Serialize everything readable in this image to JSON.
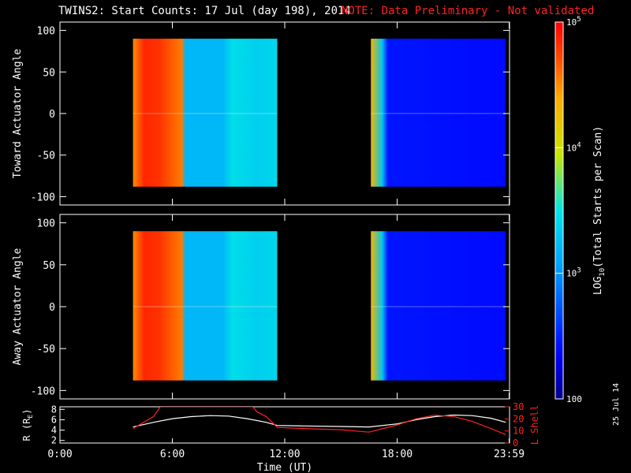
{
  "title": {
    "main": "TWINS2: Start Counts: 17 Jul (day 198), 2014",
    "note": "NOTE: Data Preliminary - Not validated",
    "note_color": "#ff2222"
  },
  "stamp": "25 Jul 14",
  "chart_data": [
    {
      "type": "heatmap",
      "panel": "top",
      "ylabel": "Toward Actuator Angle",
      "yticks": [
        100,
        50,
        0,
        -50,
        -100
      ],
      "ylim": [
        -110,
        110
      ],
      "data_y_range": [
        -88,
        90
      ],
      "xlim_hours": [
        0,
        24
      ],
      "data_segments_hours": [
        [
          3.9,
          11.6
        ],
        [
          16.6,
          23.8
        ]
      ],
      "color_profile_hours": [
        {
          "x": 3.9,
          "log": 4.5
        },
        {
          "x": 4.5,
          "log": 4.85
        },
        {
          "x": 5.3,
          "log": 4.8
        },
        {
          "x": 6.5,
          "log": 4.55
        },
        {
          "x": 6.7,
          "log": 3.2
        },
        {
          "x": 8.7,
          "log": 3.2
        },
        {
          "x": 9.2,
          "log": 3.45
        },
        {
          "x": 10.5,
          "log": 3.35
        },
        {
          "x": 11.6,
          "log": 3.4
        },
        {
          "x": 16.6,
          "log": 4.3
        },
        {
          "x": 17.2,
          "log": 3.3
        },
        {
          "x": 17.5,
          "log": 2.45
        },
        {
          "x": 23.8,
          "log": 2.4
        }
      ]
    },
    {
      "type": "heatmap",
      "panel": "bottom",
      "ylabel": "Away Actuator Angle",
      "yticks": [
        100,
        50,
        0,
        -50,
        -100
      ],
      "ylim": [
        -110,
        110
      ],
      "data_y_range": [
        -88,
        90
      ],
      "xlim_hours": [
        0,
        24
      ],
      "data_segments_hours": [
        [
          3.9,
          11.6
        ],
        [
          16.6,
          23.8
        ]
      ],
      "color_profile_hours": [
        {
          "x": 3.9,
          "log": 4.5
        },
        {
          "x": 4.5,
          "log": 4.85
        },
        {
          "x": 5.3,
          "log": 4.8
        },
        {
          "x": 6.5,
          "log": 4.55
        },
        {
          "x": 6.7,
          "log": 3.2
        },
        {
          "x": 8.7,
          "log": 3.2
        },
        {
          "x": 9.2,
          "log": 3.45
        },
        {
          "x": 10.5,
          "log": 3.35
        },
        {
          "x": 11.6,
          "log": 3.4
        },
        {
          "x": 16.6,
          "log": 4.3
        },
        {
          "x": 17.2,
          "log": 3.3
        },
        {
          "x": 17.5,
          "log": 2.45
        },
        {
          "x": 23.8,
          "log": 2.4
        }
      ]
    },
    {
      "type": "line",
      "panel": "orbit",
      "ylabel_left": "R (R",
      "ylabel_left_sub": "E",
      "ylabel_left_tail": ")",
      "ylabel_right": "L Shell",
      "right_color": "#ff2222",
      "xlabel": "Time (UT)",
      "xticks": [
        "0:00",
        "6:00",
        "12:00",
        "18:00",
        "23:59"
      ],
      "xtick_hours": [
        0,
        6,
        12,
        18,
        23.98
      ],
      "yticks_left": [
        "8",
        "6",
        "4",
        "2"
      ],
      "yticks_left_values": [
        8,
        6,
        4,
        2
      ],
      "yticks_right": [
        "30",
        "20",
        "10",
        "0"
      ],
      "yticks_right_values": [
        30,
        20,
        10,
        0
      ],
      "ylim_left": [
        1.5,
        8.5
      ],
      "ylim_right": [
        0,
        30
      ],
      "series": [
        {
          "color": "#ffffff",
          "x": [
            3.9,
            5.0,
            6.0,
            7.0,
            8.0,
            9.0,
            10.0,
            11.0,
            11.6,
            13.0,
            15.0,
            16.5,
            18.0,
            19.0,
            20.0,
            21.0,
            22.0,
            23.0,
            23.8
          ],
          "y": [
            4.6,
            5.5,
            6.2,
            6.6,
            6.8,
            6.7,
            6.2,
            5.5,
            4.9,
            4.8,
            4.7,
            4.6,
            5.2,
            6.0,
            6.6,
            6.9,
            6.8,
            6.3,
            5.5
          ]
        },
        {
          "color": "#ff2222",
          "x": [
            3.9,
            5.0,
            5.35,
            10.3,
            10.5,
            11.0,
            11.6,
            13.0,
            15.0,
            16.5,
            18.0,
            19.0,
            20.0,
            21.0,
            22.0,
            23.0,
            23.8
          ],
          "y": [
            12,
            22,
            30,
            30,
            26,
            22,
            13,
            12,
            11,
            9,
            15,
            20,
            23,
            22,
            18,
            12,
            7
          ]
        }
      ]
    }
  ],
  "colorbar": {
    "label": "LOG10(Total Starts per Scan)",
    "label_main": "LOG",
    "label_sub": "10",
    "label_tail": "(Total Starts per Scan)",
    "log_min": 2,
    "log_max": 5,
    "ticks": [
      {
        "log": 5,
        "base": "10",
        "exp": "5"
      },
      {
        "log": 4,
        "base": "10",
        "exp": "4"
      },
      {
        "log": 3,
        "base": "10",
        "exp": "3"
      },
      {
        "log": 2,
        "base": "100",
        "exp": ""
      }
    ]
  }
}
